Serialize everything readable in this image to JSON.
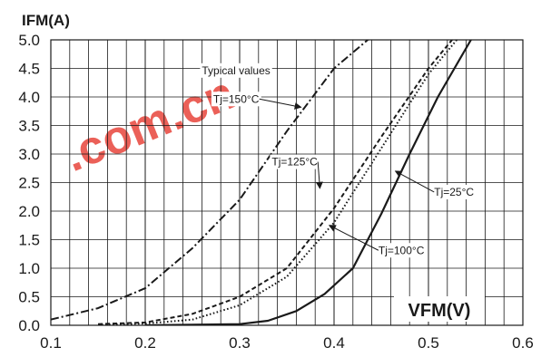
{
  "chart_data": {
    "type": "line",
    "title": "",
    "ylabel": "IFM(A)",
    "xlabel": "VFM(V)",
    "xlim": [
      0.1,
      0.6
    ],
    "ylim": [
      0.0,
      5.0
    ],
    "x_ticks": [
      "0.1",
      "0.2",
      "0.3",
      "0.4",
      "0.5",
      "0.6"
    ],
    "y_ticks": [
      "0.0",
      "0.5",
      "1.0",
      "1.5",
      "2.0",
      "2.5",
      "3.0",
      "3.5",
      "4.0",
      "4.5",
      "5.0"
    ],
    "grid": true,
    "series": [
      {
        "name": "Tj=150°C",
        "style": "dashdot",
        "x": [
          0.1,
          0.15,
          0.2,
          0.25,
          0.3,
          0.35,
          0.4,
          0.45
        ],
        "y": [
          0.1,
          0.3,
          0.65,
          1.35,
          2.2,
          3.4,
          4.5,
          5.2
        ]
      },
      {
        "name": "Tj=125°C",
        "style": "dashed",
        "x": [
          0.15,
          0.2,
          0.25,
          0.3,
          0.35,
          0.4,
          0.45,
          0.5,
          0.525
        ],
        "y": [
          0.02,
          0.05,
          0.2,
          0.5,
          1.0,
          2.05,
          3.3,
          4.5,
          5.0
        ]
      },
      {
        "name": "Tj=100°C",
        "style": "dotted",
        "x": [
          0.15,
          0.2,
          0.25,
          0.3,
          0.35,
          0.4,
          0.45,
          0.5,
          0.53
        ],
        "y": [
          0.01,
          0.03,
          0.1,
          0.35,
          0.85,
          1.8,
          3.1,
          4.4,
          5.0
        ]
      },
      {
        "name": "Tj=25°C",
        "style": "solid",
        "x": [
          0.2,
          0.3,
          0.33,
          0.36,
          0.39,
          0.42,
          0.45,
          0.48,
          0.51,
          0.545
        ],
        "y": [
          0.0,
          0.02,
          0.08,
          0.25,
          0.55,
          1.0,
          1.95,
          3.0,
          4.0,
          5.0
        ]
      }
    ],
    "annotations": [
      {
        "text": "Typical values",
        "x": 0.26,
        "y": 4.4
      },
      {
        "text": "Tj=150°C",
        "x": 0.272,
        "y": 3.9,
        "arrow_to": [
          0.365,
          3.82
        ]
      },
      {
        "text": "Tj=125°C",
        "x": 0.334,
        "y": 2.8,
        "arrow_to": [
          0.385,
          2.4
        ]
      },
      {
        "text": "Tj=100°C",
        "x": 0.447,
        "y": 1.25,
        "arrow_to": [
          0.395,
          1.75
        ]
      },
      {
        "text": "Tj=25°C",
        "x": 0.506,
        "y": 2.27,
        "arrow_to": [
          0.465,
          2.7
        ]
      }
    ]
  },
  "watermark": ".com.cn"
}
